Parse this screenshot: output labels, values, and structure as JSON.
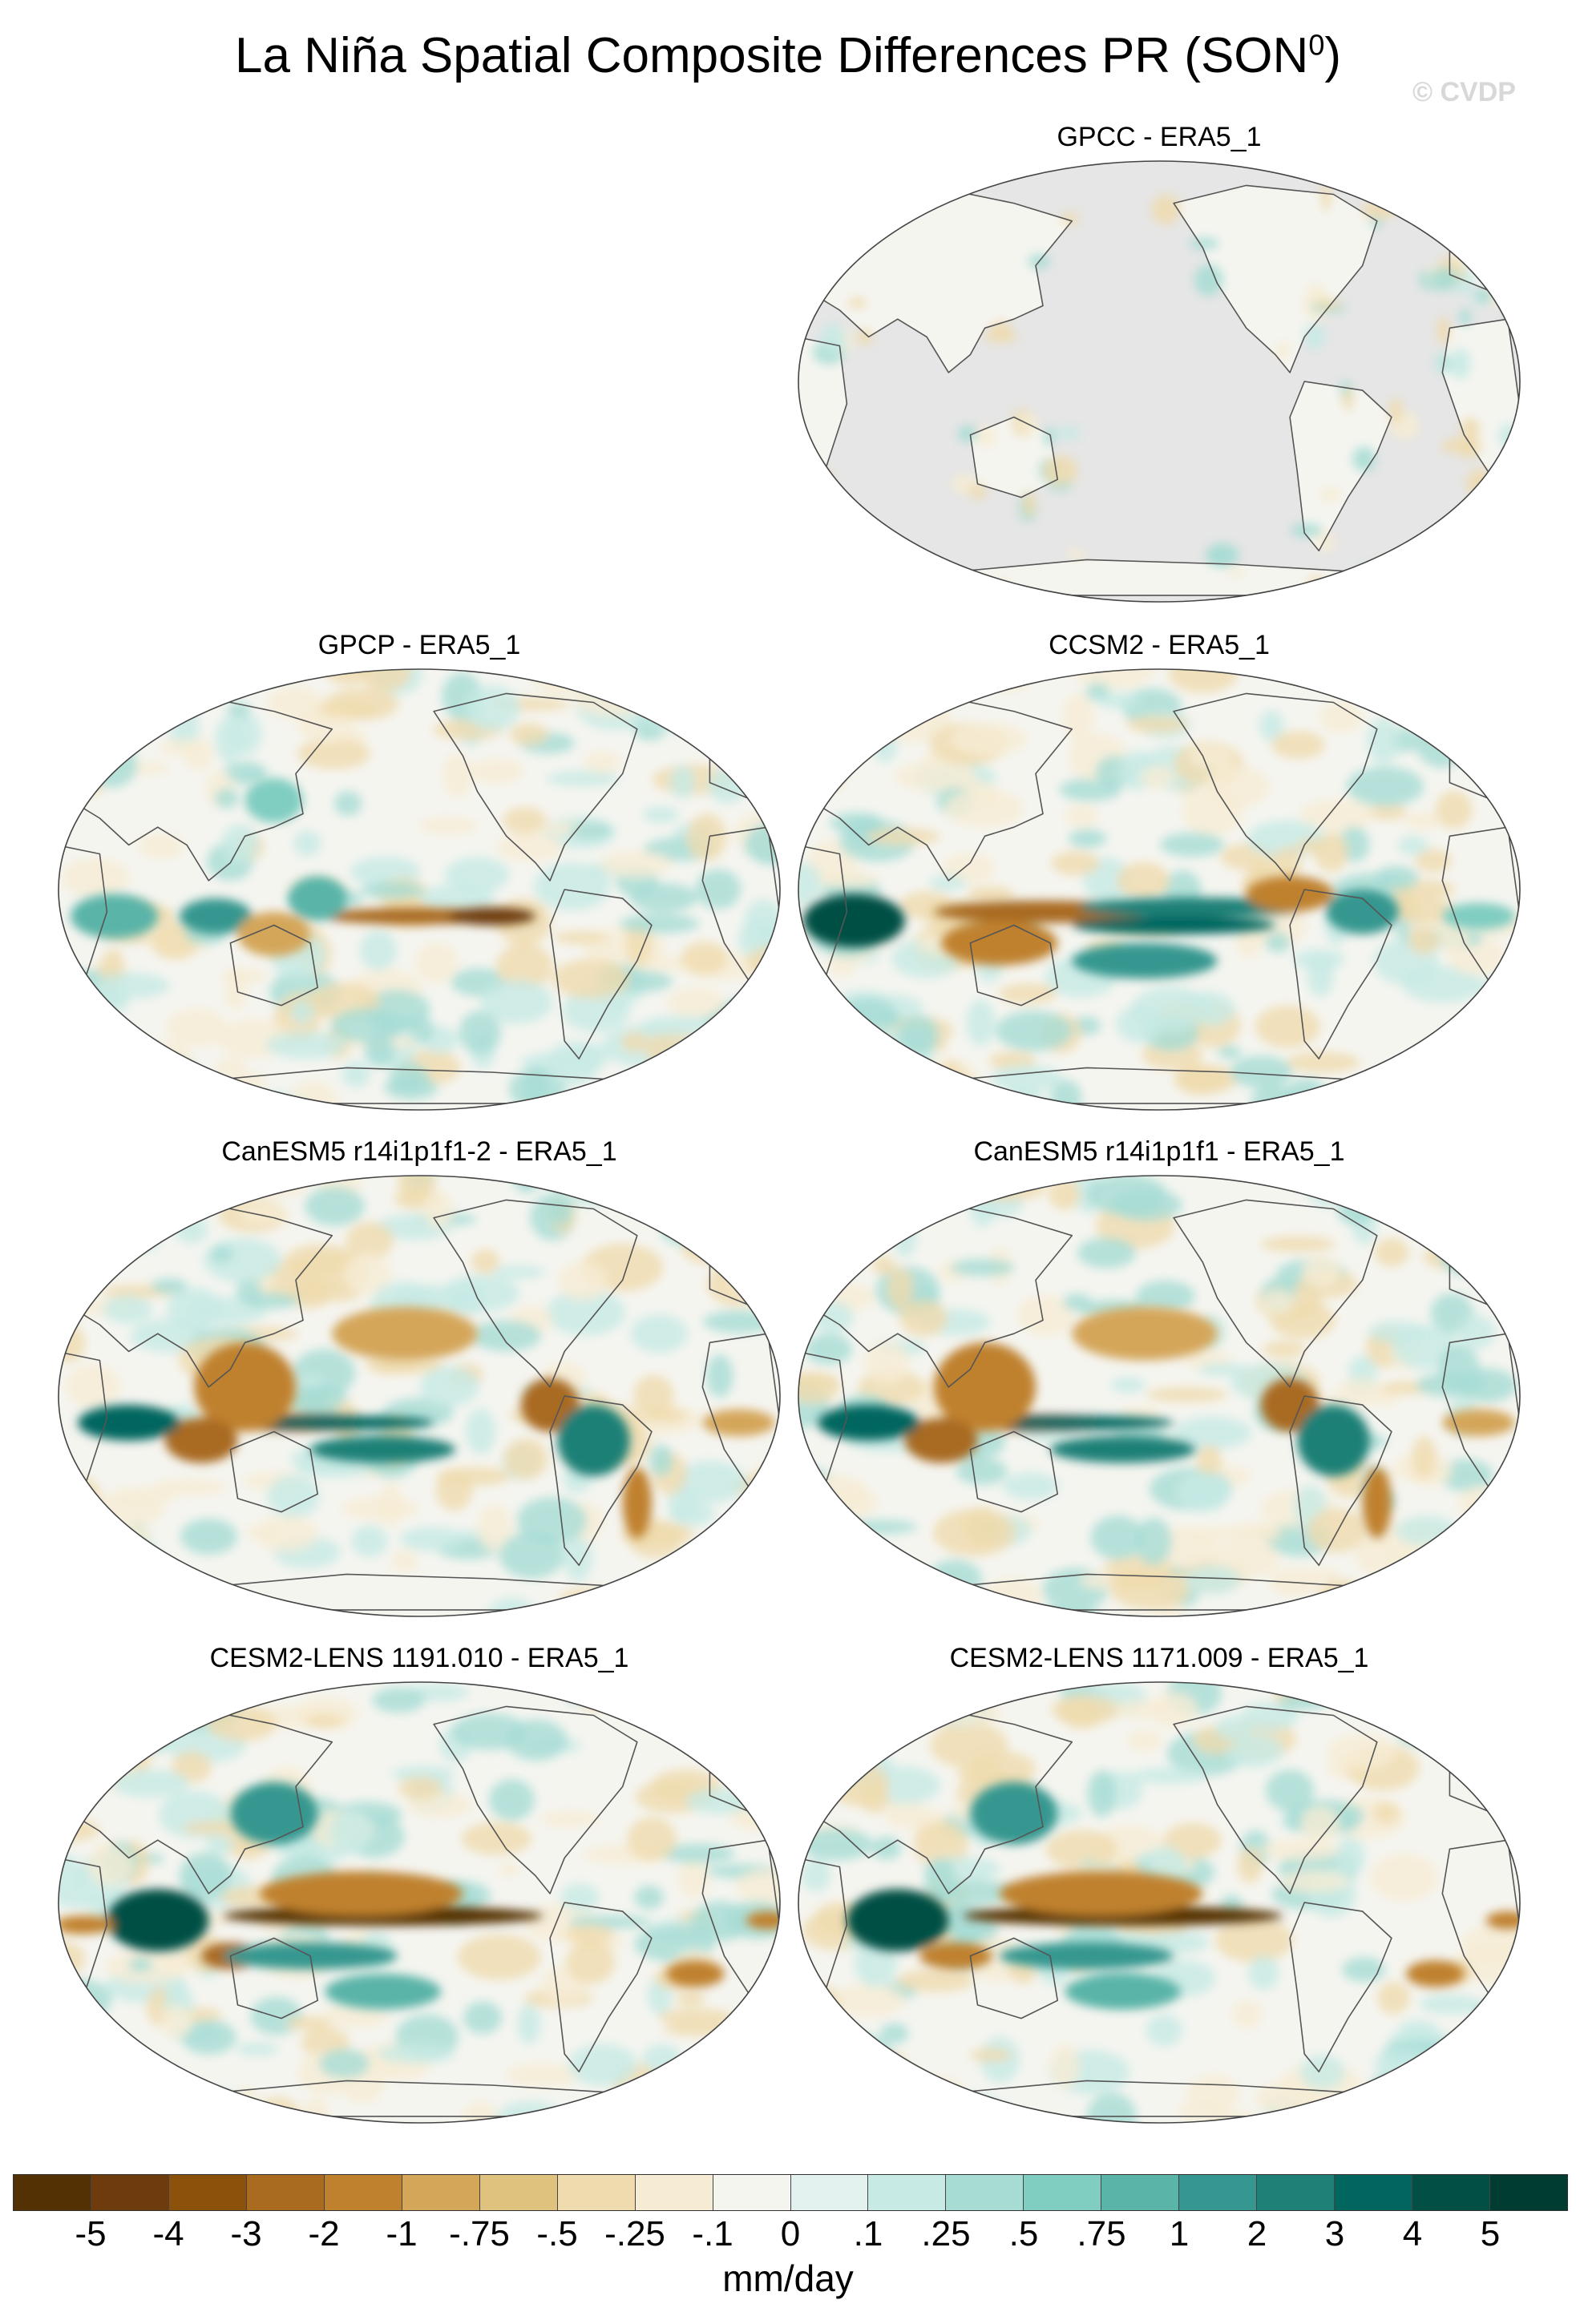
{
  "title": "La Niña Spatial Composite Differences PR (SON",
  "title_sup": "0",
  "title_close": ")",
  "watermark": "© CVDP",
  "panels": [
    {
      "title": "GPCC - ERA5_1",
      "land_only": true
    },
    {
      "title": "GPCP - ERA5_1",
      "land_only": false
    },
    {
      "title": "CCSM2 - ERA5_1",
      "land_only": false
    },
    {
      "title": "CanESM5 r14i1p1f1-2 - ERA5_1",
      "land_only": false
    },
    {
      "title": "CanESM5 r14i1p1f1 - ERA5_1",
      "land_only": false
    },
    {
      "title": "CESM2-LENS 1191.010 - ERA5_1",
      "land_only": false
    },
    {
      "title": "CESM2-LENS 1171.009 - ERA5_1",
      "land_only": false
    }
  ],
  "colorbar": {
    "units": "mm/day",
    "labels": [
      "-5",
      "-4",
      "-3",
      "-2",
      "-1",
      "-.75",
      "-.5",
      "-.25",
      "-.1",
      "0",
      ".1",
      ".25",
      ".5",
      ".75",
      "1",
      "2",
      "3",
      "4",
      "5"
    ],
    "colors": [
      "#543005",
      "#6e3c0c",
      "#8c510a",
      "#a96b20",
      "#bf812d",
      "#d4a65a",
      "#dfc27d",
      "#efdbae",
      "#f6ecd4",
      "#f5f5f0",
      "#e4f2ef",
      "#c7eae5",
      "#a6dcd4",
      "#80cdc1",
      "#5ab4a8",
      "#35978f",
      "#1f8077",
      "#01665e",
      "#024f45",
      "#003c30"
    ]
  },
  "chart_data": {
    "type": "heatmap",
    "title": "La Niña Spatial Composite Differences PR (SON0)",
    "units": "mm/day",
    "contour_levels": [
      -5,
      -4,
      -3,
      -2,
      -1,
      -0.75,
      -0.5,
      -0.25,
      -0.1,
      0,
      0.1,
      0.25,
      0.5,
      0.75,
      1,
      2,
      3,
      4,
      5
    ],
    "projection": "Robinson (Pacific-centered)",
    "panels": [
      "GPCC - ERA5_1",
      "GPCP - ERA5_1",
      "CCSM2 - ERA5_1",
      "CanESM5 r14i1p1f1-2 - ERA5_1",
      "CanESM5 r14i1p1f1 - ERA5_1",
      "CESM2-LENS 1191.010 - ERA5_1",
      "CESM2-LENS 1171.009 - ERA5_1"
    ]
  }
}
